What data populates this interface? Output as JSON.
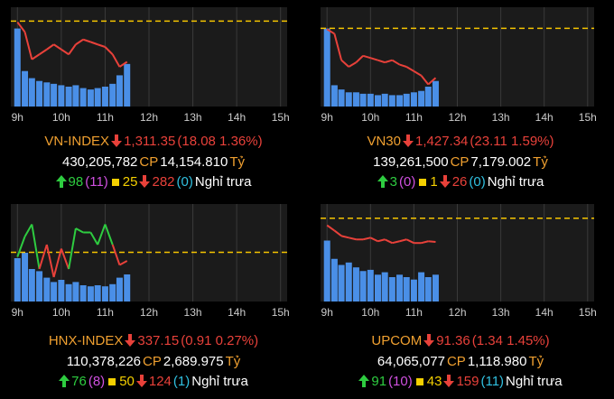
{
  "chart_data": [
    {
      "type": "line",
      "index": "VN-INDEX",
      "price": "1,311.35",
      "change": "(18.08 1.36%)",
      "volume": "430,205,782",
      "cp": "CP",
      "traded": "14,154.810",
      "unit": "Tỷ",
      "advances": "98",
      "ceiling": "(11)",
      "unchanged": "25",
      "declines": "282",
      "floor": "(0)",
      "status": "Nghỉ trưa",
      "x": [
        9,
        9.17,
        9.33,
        9.5,
        9.67,
        9.83,
        10,
        10.17,
        10.33,
        10.5,
        10.67,
        10.83,
        11,
        11.17,
        11.33,
        11.5
      ],
      "xlim": [
        8.85,
        15.15
      ],
      "xticks": [
        {
          "value": 9,
          "label": "9h"
        },
        {
          "value": 10,
          "label": "10h"
        },
        {
          "value": 11,
          "label": "11h"
        },
        {
          "value": 12,
          "label": "12h"
        },
        {
          "value": 13,
          "label": "13h"
        },
        {
          "value": 14,
          "label": "14h"
        },
        {
          "value": 15,
          "label": "15h"
        }
      ],
      "ylim": [
        1295,
        1335
      ],
      "reference": 1329.43,
      "y2lim": [
        0,
        70
      ],
      "series": [
        {
          "values": [
            1329,
            1325,
            1314,
            1316,
            1318,
            1320,
            1318,
            1316,
            1320,
            1322,
            1321,
            1320,
            1319,
            1316,
            1311,
            1313
          ],
          "up_color": "#2ecc40",
          "down_color": "#e8413a"
        },
        {
          "values": [
            55,
            25,
            20,
            18,
            17,
            16,
            15,
            14,
            15,
            13,
            12,
            13,
            14,
            16,
            22,
            30
          ],
          "color": "#4a8fe7",
          "axis": "y2"
        }
      ]
    },
    {
      "type": "line",
      "index": "VN30",
      "price": "1,427.34",
      "change": "(23.11 1.59%)",
      "volume": "139,261,500",
      "cp": "CP",
      "traded": "7,179.002",
      "unit": "Tỷ",
      "advances": "3",
      "ceiling": "(0)",
      "unchanged": "1",
      "declines": "26",
      "floor": "(0)",
      "status": "Nghỉ trưa",
      "x": [
        9,
        9.17,
        9.33,
        9.5,
        9.67,
        9.83,
        10,
        10.17,
        10.33,
        10.5,
        10.67,
        10.83,
        11,
        11.17,
        11.33,
        11.5
      ],
      "xlim": [
        8.85,
        15.15
      ],
      "xticks": [
        {
          "value": 9,
          "label": "9h"
        },
        {
          "value": 10,
          "label": "10h"
        },
        {
          "value": 11,
          "label": "11h"
        },
        {
          "value": 12,
          "label": "12h"
        },
        {
          "value": 13,
          "label": "13h"
        },
        {
          "value": 14,
          "label": "14h"
        },
        {
          "value": 15,
          "label": "15h"
        }
      ],
      "ylim": [
        1415,
        1460
      ],
      "reference": 1450.45,
      "y2lim": [
        0,
        70
      ],
      "series": [
        {
          "values": [
            1450,
            1448,
            1436,
            1433,
            1435,
            1438,
            1437,
            1436,
            1435,
            1436,
            1434,
            1433,
            1431,
            1429,
            1425,
            1428
          ],
          "up_color": "#2ecc40",
          "down_color": "#e8413a"
        },
        {
          "values": [
            55,
            15,
            12,
            10,
            10,
            9,
            9,
            8,
            9,
            8,
            8,
            9,
            10,
            11,
            14,
            18
          ],
          "color": "#4a8fe7",
          "axis": "y2"
        }
      ]
    },
    {
      "type": "line",
      "index": "HNX-INDEX",
      "price": "337.15",
      "change": "(0.91 0.27%)",
      "volume": "110,378,226",
      "cp": "CP",
      "traded": "2,689.975",
      "unit": "Tỷ",
      "advances": "76",
      "ceiling": "(8)",
      "unchanged": "50",
      "declines": "124",
      "floor": "(1)",
      "status": "Nghỉ trưa",
      "x": [
        9,
        9.17,
        9.33,
        9.5,
        9.67,
        9.83,
        10,
        10.17,
        10.33,
        10.5,
        10.67,
        10.83,
        11,
        11.17,
        11.33,
        11.5
      ],
      "xlim": [
        8.85,
        15.15
      ],
      "xticks": [
        {
          "value": 9,
          "label": "9h"
        },
        {
          "value": 10,
          "label": "10h"
        },
        {
          "value": 11,
          "label": "11h"
        },
        {
          "value": 12,
          "label": "12h"
        },
        {
          "value": 13,
          "label": "13h"
        },
        {
          "value": 14,
          "label": "14h"
        },
        {
          "value": 15,
          "label": "15h"
        }
      ],
      "ylim": [
        332,
        344
      ],
      "reference": 338.06,
      "y2lim": [
        0,
        90
      ],
      "series": [
        {
          "values": [
            337.5,
            340,
            341.5,
            336,
            339,
            335,
            338.5,
            336,
            341,
            340.5,
            340.5,
            339,
            341.5,
            339,
            336.5,
            337
          ],
          "up_color": "#2ecc40",
          "down_color": "#e8413a"
        },
        {
          "values": [
            40,
            45,
            30,
            28,
            22,
            18,
            20,
            16,
            18,
            15,
            14,
            15,
            14,
            16,
            22,
            25
          ],
          "color": "#4a8fe7",
          "axis": "y2"
        }
      ]
    },
    {
      "type": "line",
      "index": "UPCOM",
      "price": "91.36",
      "change": "(1.34 1.45%)",
      "volume": "64,065,077",
      "cp": "CP",
      "traded": "1,118.980",
      "unit": "Tỷ",
      "advances": "91",
      "ceiling": "(10)",
      "unchanged": "43",
      "declines": "159",
      "floor": "(11)",
      "status": "Nghỉ trưa",
      "x": [
        9,
        9.17,
        9.33,
        9.5,
        9.67,
        9.83,
        10,
        10.17,
        10.33,
        10.5,
        10.67,
        10.83,
        11,
        11.17,
        11.33,
        11.5
      ],
      "xlim": [
        8.85,
        15.15
      ],
      "xticks": [
        {
          "value": 9,
          "label": "9h"
        },
        {
          "value": 10,
          "label": "10h"
        },
        {
          "value": 11,
          "label": "11h"
        },
        {
          "value": 12,
          "label": "12h"
        },
        {
          "value": 13,
          "label": "13h"
        },
        {
          "value": 14,
          "label": "14h"
        },
        {
          "value": 15,
          "label": "15h"
        }
      ],
      "ylim": [
        88,
        93.5
      ],
      "reference": 92.7,
      "y2lim": [
        0,
        80
      ],
      "series": [
        {
          "values": [
            92.3,
            92,
            91.7,
            91.6,
            91.5,
            91.5,
            91.6,
            91.4,
            91.5,
            91.3,
            91.4,
            91.5,
            91.3,
            91.3,
            91.4,
            91.36
          ],
          "up_color": "#2ecc40",
          "down_color": "#e8413a"
        },
        {
          "values": [
            50,
            35,
            30,
            32,
            28,
            25,
            26,
            22,
            24,
            20,
            22,
            20,
            18,
            24,
            20,
            22
          ],
          "color": "#4a8fe7",
          "axis": "y2"
        }
      ]
    }
  ]
}
